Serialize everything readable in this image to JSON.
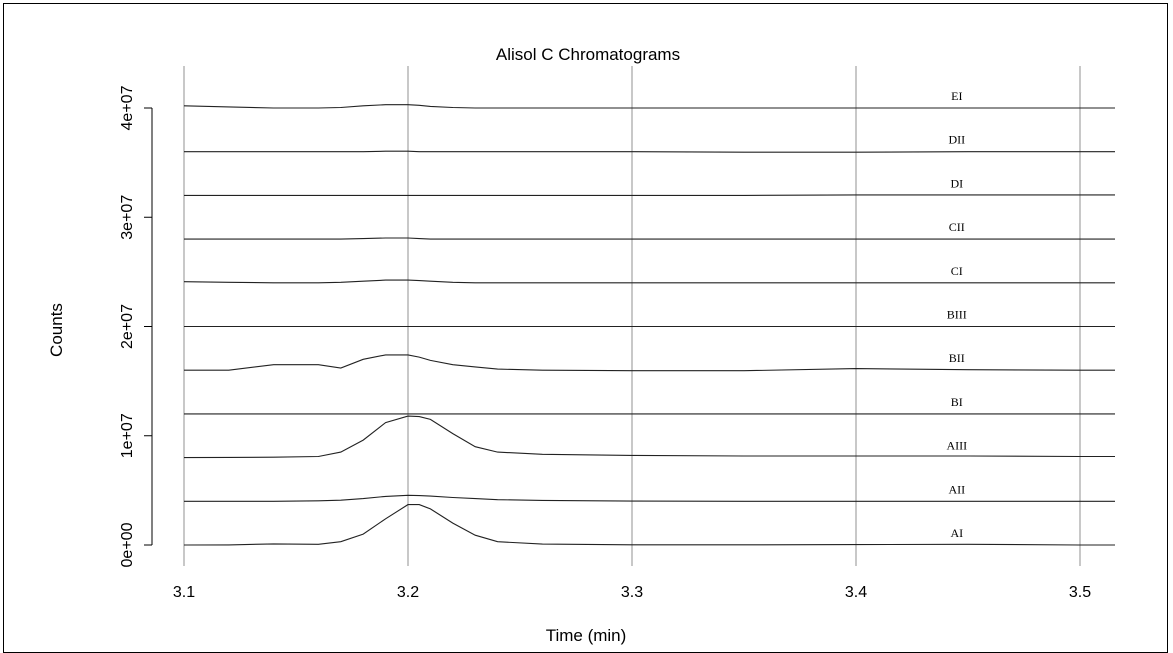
{
  "chart_data": {
    "type": "line",
    "title": "Alisol C Chromatograms",
    "xlabel": "Time (min)",
    "ylabel": "Counts",
    "xlim": [
      3.1,
      3.5
    ],
    "ylim": [
      0,
      40000000
    ],
    "grid": true,
    "x_ticks": [
      {
        "value": 3.1,
        "label": "3.1"
      },
      {
        "value": 3.2,
        "label": "3.2"
      },
      {
        "value": 3.3,
        "label": "3.3"
      },
      {
        "value": 3.4,
        "label": "3.4"
      },
      {
        "value": 3.5,
        "label": "3.5"
      }
    ],
    "y_ticks": [
      {
        "value": 0,
        "label": "0e+00"
      },
      {
        "value": 10000000,
        "label": "1e+07"
      },
      {
        "value": 20000000,
        "label": "2e+07"
      },
      {
        "value": 30000000,
        "label": "3e+07"
      },
      {
        "value": 40000000,
        "label": "4e+07"
      }
    ],
    "x": [
      3.1,
      3.12,
      3.14,
      3.16,
      3.17,
      3.18,
      3.19,
      3.2,
      3.205,
      3.21,
      3.22,
      3.23,
      3.24,
      3.26,
      3.3,
      3.35,
      3.4,
      3.45,
      3.5
    ],
    "series": [
      {
        "name": "AI",
        "baseline": 0,
        "values": [
          0,
          10000,
          100000,
          60000,
          300000,
          1000000,
          2400000,
          3700000,
          3700000,
          3300000,
          2000000,
          900000,
          300000,
          80000,
          20000,
          20000,
          40000,
          60000,
          0
        ]
      },
      {
        "name": "AII",
        "baseline": 4000000,
        "values": [
          4000000,
          4000000,
          4000000,
          4050000,
          4100000,
          4250000,
          4450000,
          4550000,
          4520000,
          4480000,
          4350000,
          4250000,
          4150000,
          4080000,
          4020000,
          4000000,
          4000000,
          4000000,
          4000000
        ]
      },
      {
        "name": "AIII",
        "baseline": 8000000,
        "values": [
          8000000,
          8020000,
          8040000,
          8100000,
          8500000,
          9600000,
          11200000,
          11800000,
          11750000,
          11500000,
          10200000,
          9000000,
          8500000,
          8300000,
          8200000,
          8150000,
          8150000,
          8150000,
          8100000
        ]
      },
      {
        "name": "BI",
        "baseline": 12000000,
        "values": [
          12000000,
          12000000,
          12000000,
          12000000,
          12000000,
          12000000,
          12000000,
          12000000,
          12000000,
          12000000,
          12000000,
          12000000,
          12000000,
          12000000,
          12000000,
          12000000,
          12000000,
          12000000,
          12000000
        ]
      },
      {
        "name": "BII",
        "baseline": 16000000,
        "values": [
          16000000,
          16000000,
          16500000,
          16500000,
          16200000,
          17000000,
          17400000,
          17400000,
          17200000,
          16900000,
          16500000,
          16300000,
          16100000,
          16000000,
          15950000,
          15950000,
          16150000,
          16050000,
          16000000
        ]
      },
      {
        "name": "BIII",
        "baseline": 20000000,
        "values": [
          20000000,
          20000000,
          20000000,
          20000000,
          20000000,
          20000000,
          20000000,
          20000000,
          20000000,
          20000000,
          20000000,
          20000000,
          20000000,
          20000000,
          20000000,
          20000000,
          20000000,
          20000000,
          20000000
        ]
      },
      {
        "name": "CI",
        "baseline": 24000000,
        "values": [
          24100000,
          24050000,
          24000000,
          24000000,
          24050000,
          24150000,
          24250000,
          24250000,
          24200000,
          24150000,
          24050000,
          24000000,
          24000000,
          24000000,
          24000000,
          24000000,
          24000000,
          24000000,
          24000000
        ]
      },
      {
        "name": "CII",
        "baseline": 28000000,
        "values": [
          28000000,
          28000000,
          28000000,
          28000000,
          28000000,
          28050000,
          28100000,
          28100000,
          28050000,
          28000000,
          28000000,
          28000000,
          28000000,
          28000000,
          28000000,
          28000000,
          28000000,
          28000000,
          28000000
        ]
      },
      {
        "name": "DI",
        "baseline": 32000000,
        "values": [
          32000000,
          32000000,
          32000000,
          32000000,
          32000000,
          32000000,
          32000000,
          32000000,
          32000000,
          32000000,
          32000000,
          32000000,
          32000000,
          32000000,
          32000000,
          32000000,
          32050000,
          32050000,
          32050000
        ]
      },
      {
        "name": "DII",
        "baseline": 36000000,
        "values": [
          36000000,
          36000000,
          36000000,
          36000000,
          36000000,
          36000000,
          36050000,
          36050000,
          36000000,
          36000000,
          36000000,
          36000000,
          36000000,
          36000000,
          36000000,
          35950000,
          35950000,
          36000000,
          36000000
        ]
      },
      {
        "name": "EI",
        "baseline": 40000000,
        "values": [
          40200000,
          40100000,
          40000000,
          40000000,
          40050000,
          40200000,
          40300000,
          40300000,
          40250000,
          40150000,
          40050000,
          40000000,
          40000000,
          40000000,
          40000000,
          40000000,
          40000000,
          40000000,
          40000000
        ]
      }
    ],
    "label_x": 3.445
  }
}
